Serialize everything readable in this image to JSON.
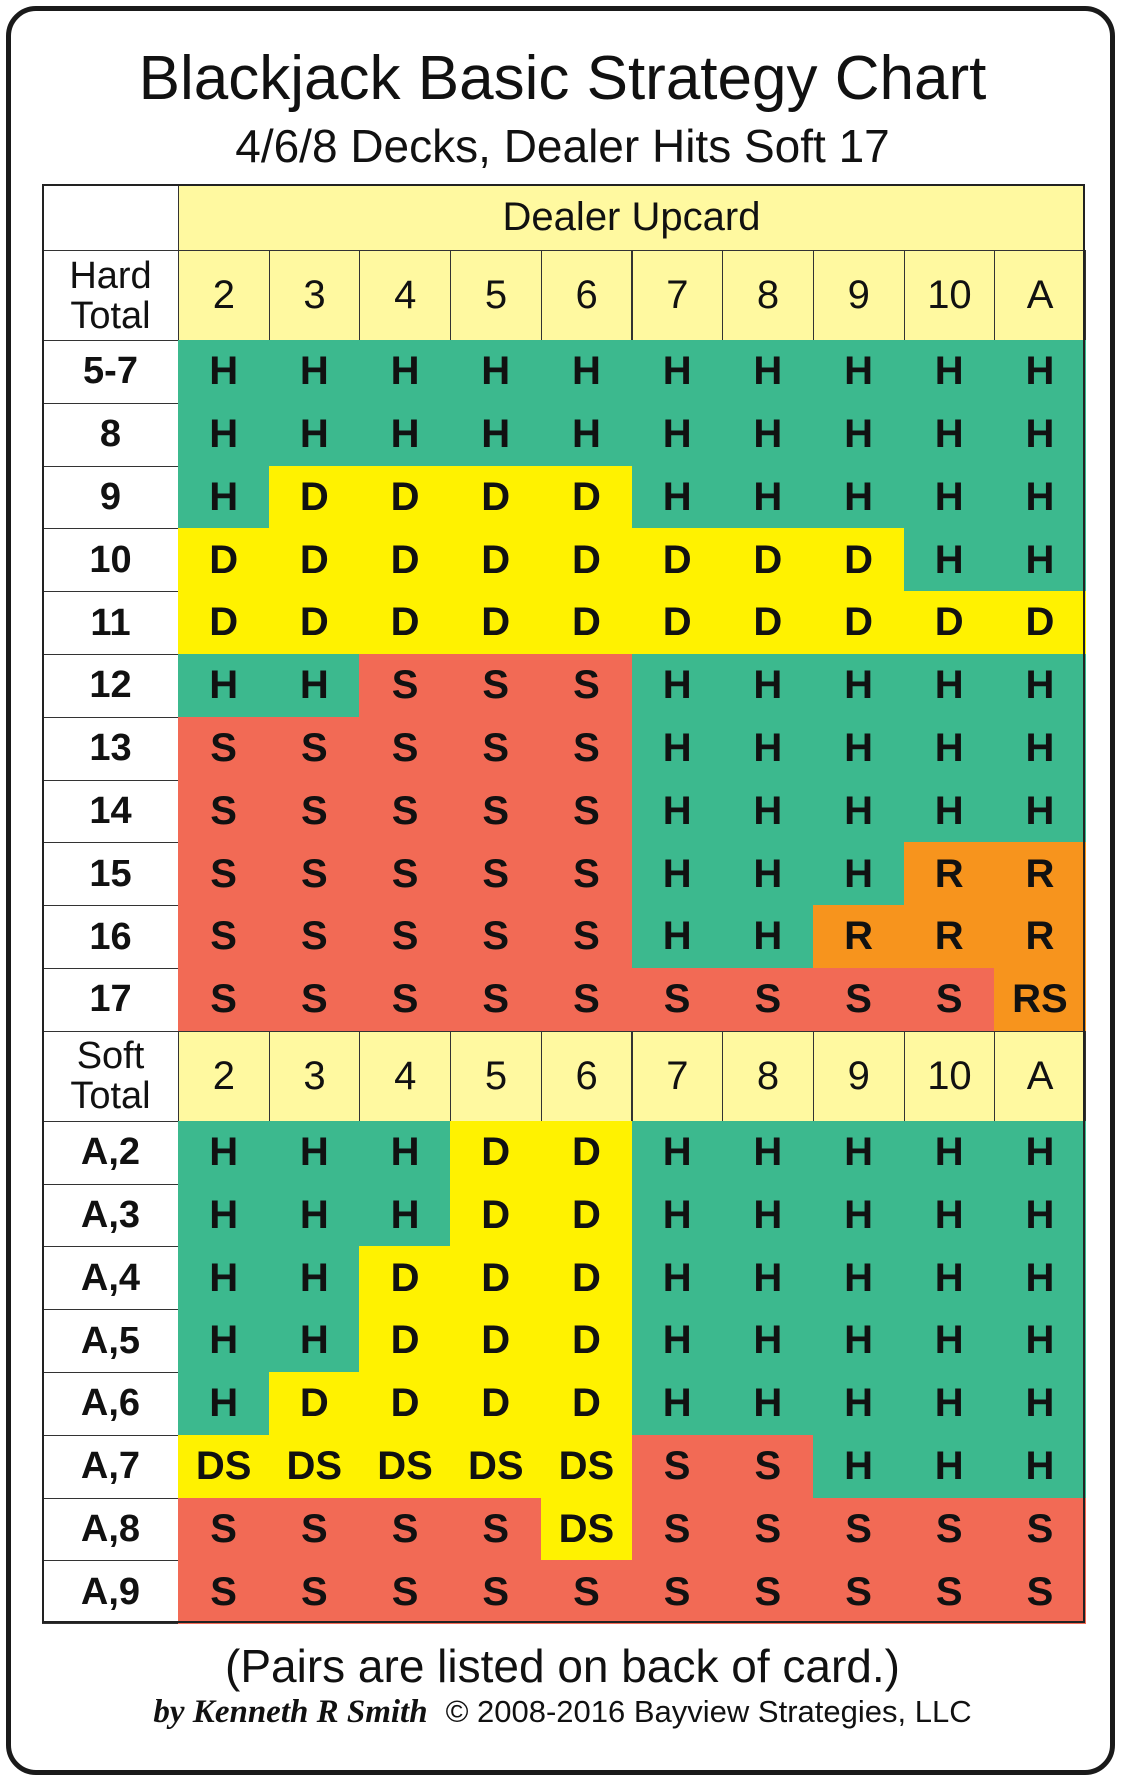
{
  "header": {
    "title": "Blackjack Basic Strategy Chart",
    "subtitle": "4/6/8 Decks, Dealer Hits Soft 17"
  },
  "table": {
    "upcard_label": "Dealer Upcard",
    "hard": {
      "label": "Hard Total",
      "upcards": [
        "2",
        "3",
        "4",
        "5",
        "6",
        "7",
        "8",
        "9",
        "10",
        "A"
      ],
      "rows": [
        {
          "total": "5-7",
          "actions": [
            "H",
            "H",
            "H",
            "H",
            "H",
            "H",
            "H",
            "H",
            "H",
            "H"
          ]
        },
        {
          "total": "8",
          "actions": [
            "H",
            "H",
            "H",
            "H",
            "H",
            "H",
            "H",
            "H",
            "H",
            "H"
          ]
        },
        {
          "total": "9",
          "actions": [
            "H",
            "D",
            "D",
            "D",
            "D",
            "H",
            "H",
            "H",
            "H",
            "H"
          ]
        },
        {
          "total": "10",
          "actions": [
            "D",
            "D",
            "D",
            "D",
            "D",
            "D",
            "D",
            "D",
            "H",
            "H"
          ]
        },
        {
          "total": "11",
          "actions": [
            "D",
            "D",
            "D",
            "D",
            "D",
            "D",
            "D",
            "D",
            "D",
            "D"
          ]
        },
        {
          "total": "12",
          "actions": [
            "H",
            "H",
            "S",
            "S",
            "S",
            "H",
            "H",
            "H",
            "H",
            "H"
          ]
        },
        {
          "total": "13",
          "actions": [
            "S",
            "S",
            "S",
            "S",
            "S",
            "H",
            "H",
            "H",
            "H",
            "H"
          ]
        },
        {
          "total": "14",
          "actions": [
            "S",
            "S",
            "S",
            "S",
            "S",
            "H",
            "H",
            "H",
            "H",
            "H"
          ]
        },
        {
          "total": "15",
          "actions": [
            "S",
            "S",
            "S",
            "S",
            "S",
            "H",
            "H",
            "H",
            "R",
            "R"
          ]
        },
        {
          "total": "16",
          "actions": [
            "S",
            "S",
            "S",
            "S",
            "S",
            "H",
            "H",
            "R",
            "R",
            "R"
          ]
        },
        {
          "total": "17",
          "actions": [
            "S",
            "S",
            "S",
            "S",
            "S",
            "S",
            "S",
            "S",
            "S",
            "RS"
          ]
        }
      ]
    },
    "soft": {
      "label": "Soft Total",
      "upcards": [
        "2",
        "3",
        "4",
        "5",
        "6",
        "7",
        "8",
        "9",
        "10",
        "A"
      ],
      "rows": [
        {
          "total": "A,2",
          "actions": [
            "H",
            "H",
            "H",
            "D",
            "D",
            "H",
            "H",
            "H",
            "H",
            "H"
          ]
        },
        {
          "total": "A,3",
          "actions": [
            "H",
            "H",
            "H",
            "D",
            "D",
            "H",
            "H",
            "H",
            "H",
            "H"
          ]
        },
        {
          "total": "A,4",
          "actions": [
            "H",
            "H",
            "D",
            "D",
            "D",
            "H",
            "H",
            "H",
            "H",
            "H"
          ]
        },
        {
          "total": "A,5",
          "actions": [
            "H",
            "H",
            "D",
            "D",
            "D",
            "H",
            "H",
            "H",
            "H",
            "H"
          ]
        },
        {
          "total": "A,6",
          "actions": [
            "H",
            "D",
            "D",
            "D",
            "D",
            "H",
            "H",
            "H",
            "H",
            "H"
          ]
        },
        {
          "total": "A,7",
          "actions": [
            "DS",
            "DS",
            "DS",
            "DS",
            "DS",
            "S",
            "S",
            "H",
            "H",
            "H"
          ]
        },
        {
          "total": "A,8",
          "actions": [
            "S",
            "S",
            "S",
            "S",
            "DS",
            "S",
            "S",
            "S",
            "S",
            "S"
          ]
        },
        {
          "total": "A,9",
          "actions": [
            "S",
            "S",
            "S",
            "S",
            "S",
            "S",
            "S",
            "S",
            "S",
            "S"
          ]
        }
      ]
    }
  },
  "colors": {
    "H": "#3cb98e",
    "D": "#fff200",
    "DS": "#fff200",
    "S": "#f26a55",
    "R": "#f7941d",
    "RS": "#f7941d"
  },
  "footer": {
    "note": "(Pairs are listed on back of card.)",
    "author": "by Kenneth R Smith",
    "copyright": "© 2008-2016 Bayview Strategies, LLC"
  }
}
